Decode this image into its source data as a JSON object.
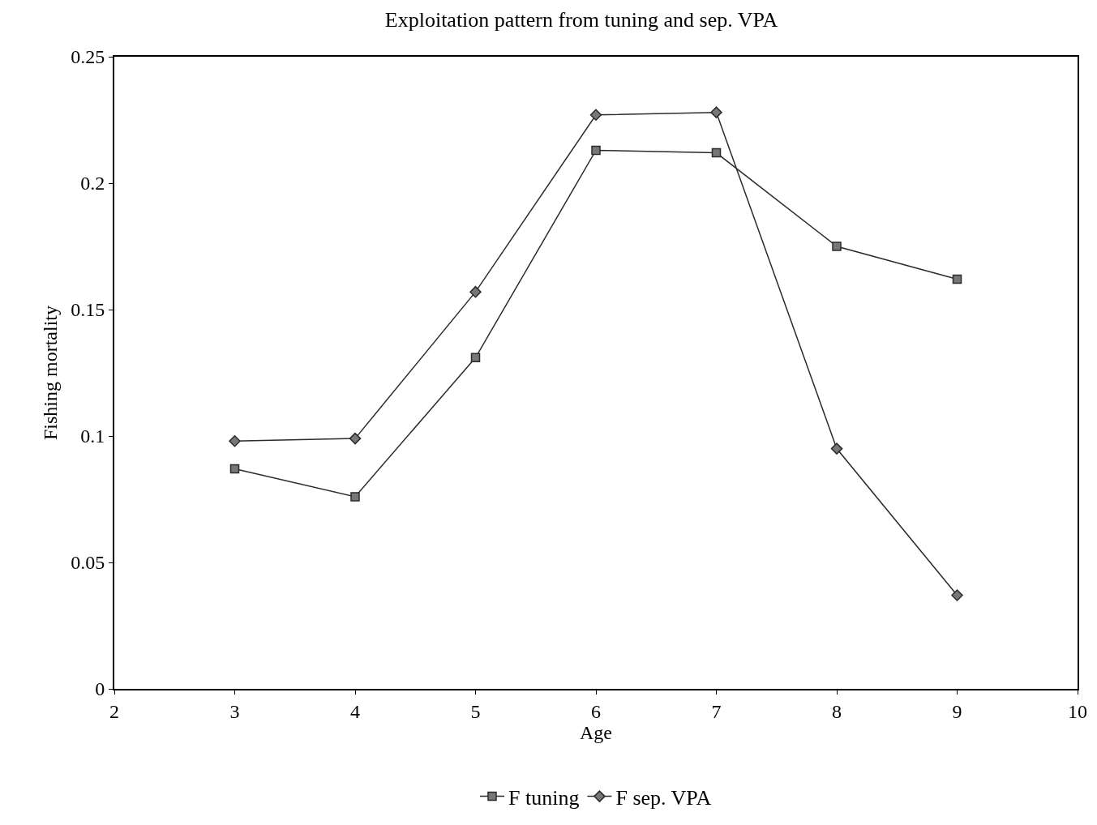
{
  "chart_data": {
    "type": "line",
    "title": "Exploitation pattern from tuning and sep. VPA",
    "xlabel": "Age",
    "ylabel": "Fishing mortality",
    "x": [
      3,
      4,
      5,
      6,
      7,
      8,
      9
    ],
    "series": [
      {
        "name": "F tuning",
        "color": "#2b2b2b",
        "marker": "square",
        "values": [
          0.087,
          0.076,
          0.131,
          0.213,
          0.212,
          0.175,
          0.162
        ]
      },
      {
        "name": "F sep. VPA",
        "color": "#2b2b2b",
        "marker": "diamond",
        "values": [
          0.098,
          0.099,
          0.157,
          0.227,
          0.228,
          0.095,
          0.037
        ]
      }
    ],
    "xlim": [
      2,
      10
    ],
    "xticks": [
      2,
      3,
      4,
      5,
      6,
      7,
      8,
      9,
      10
    ],
    "ylim": [
      0,
      0.25
    ],
    "yticks": [
      0,
      0.05,
      0.1,
      0.15,
      0.2,
      0.25
    ],
    "legend": "bottom",
    "line_style": "solid"
  }
}
